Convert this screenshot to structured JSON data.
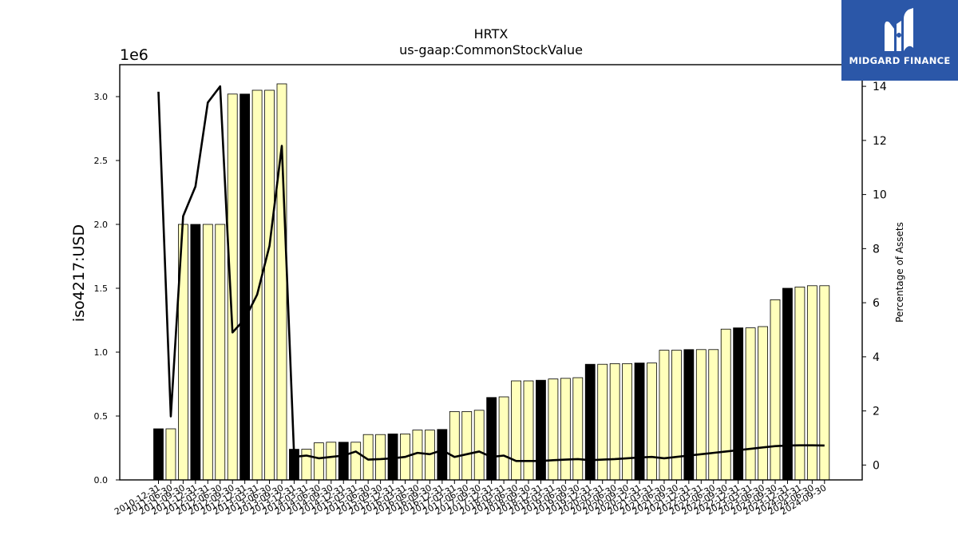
{
  "chart_data": {
    "type": "bar",
    "title": "HRTX",
    "subtitle": "us-gaap:CommonStockValue",
    "ylabel": "iso4217:USD",
    "y_offset_label": "1e6",
    "y2label": "Percentage of Assets",
    "ylim": [
      0,
      3250000
    ],
    "y2lim": [
      -0.55,
      14.8
    ],
    "yticks": [
      "0.0",
      "0.5",
      "1.0",
      "1.5",
      "2.0",
      "2.5",
      "3.0"
    ],
    "y2ticks": [
      "0",
      "2",
      "4",
      "6",
      "8",
      "10",
      "12",
      "14"
    ],
    "grid": false,
    "categories": [
      "2010-12-31",
      "2011-06-30",
      "2011-09-30",
      "2011-12-31",
      "2012-03-31",
      "2012-06-30",
      "2012-09-30",
      "2012-12-31",
      "2013-03-31",
      "2013-06-30",
      "2013-09-30",
      "2013-12-31",
      "2014-03-31",
      "2014-06-30",
      "2014-09-30",
      "2014-12-31",
      "2015-03-31",
      "2015-06-30",
      "2015-09-30",
      "2015-12-31",
      "2016-03-31",
      "2016-06-30",
      "2016-09-30",
      "2016-12-31",
      "2017-03-31",
      "2017-06-30",
      "2017-09-30",
      "2017-12-31",
      "2018-03-31",
      "2018-06-30",
      "2018-09-30",
      "2018-12-31",
      "2019-03-31",
      "2019-06-30",
      "2019-09-30",
      "2019-12-31",
      "2020-03-31",
      "2020-06-30",
      "2020-09-30",
      "2020-12-31",
      "2021-03-31",
      "2021-06-30",
      "2021-09-30",
      "2021-12-31",
      "2022-03-31",
      "2022-06-30",
      "2022-09-30",
      "2022-12-31",
      "2023-03-31",
      "2023-06-30",
      "2023-09-30",
      "2023-12-31",
      "2024-03-31",
      "2024-06-30",
      "2024-09-30"
    ],
    "series": [
      {
        "type": "bar",
        "axis": "left",
        "values": [
          400000,
          400000,
          2000000,
          2000000,
          2000000,
          2000000,
          3020000,
          3020000,
          3050000,
          3050000,
          3100000,
          240000,
          240000,
          290000,
          295000,
          295000,
          295000,
          355000,
          355000,
          360000,
          360000,
          390000,
          390000,
          395000,
          535000,
          535000,
          545000,
          645000,
          650000,
          775000,
          775000,
          780000,
          790000,
          795000,
          800000,
          905000,
          905000,
          910000,
          910000,
          915000,
          915000,
          1015000,
          1015000,
          1020000,
          1020000,
          1020000,
          1180000,
          1190000,
          1190000,
          1200000,
          1410000,
          1500000,
          1510000,
          1520000,
          1520000
        ],
        "highlight": [
          true,
          false,
          false,
          true,
          false,
          false,
          false,
          true,
          false,
          false,
          false,
          true,
          false,
          false,
          false,
          true,
          false,
          false,
          false,
          true,
          false,
          false,
          false,
          true,
          false,
          false,
          false,
          true,
          false,
          false,
          false,
          true,
          false,
          false,
          false,
          true,
          false,
          false,
          false,
          true,
          false,
          false,
          false,
          true,
          false,
          false,
          false,
          true,
          false,
          false,
          false,
          true,
          false,
          false,
          false
        ],
        "color": "#ffffbb",
        "highlight_color": "#000000"
      },
      {
        "type": "line",
        "axis": "right",
        "values": [
          13.8,
          1.8,
          9.2,
          10.3,
          13.4,
          14.0,
          4.9,
          5.4,
          6.3,
          8.1,
          11.8,
          0.3,
          0.35,
          0.25,
          0.3,
          0.35,
          0.5,
          0.2,
          0.22,
          0.25,
          0.3,
          0.45,
          0.4,
          0.55,
          0.3,
          0.4,
          0.5,
          0.3,
          0.35,
          0.15,
          0.15,
          0.15,
          0.18,
          0.2,
          0.22,
          0.18,
          0.2,
          0.22,
          0.25,
          0.28,
          0.3,
          0.25,
          0.3,
          0.35,
          0.4,
          0.45,
          0.5,
          0.55,
          0.6,
          0.65,
          0.7,
          0.72,
          0.73,
          0.73,
          0.72
        ],
        "color": "#000000"
      }
    ]
  },
  "brand": {
    "name": "MIDGARD FINANCE",
    "logo_icon": "midgard-logo-icon",
    "color": "#2b57a8"
  }
}
